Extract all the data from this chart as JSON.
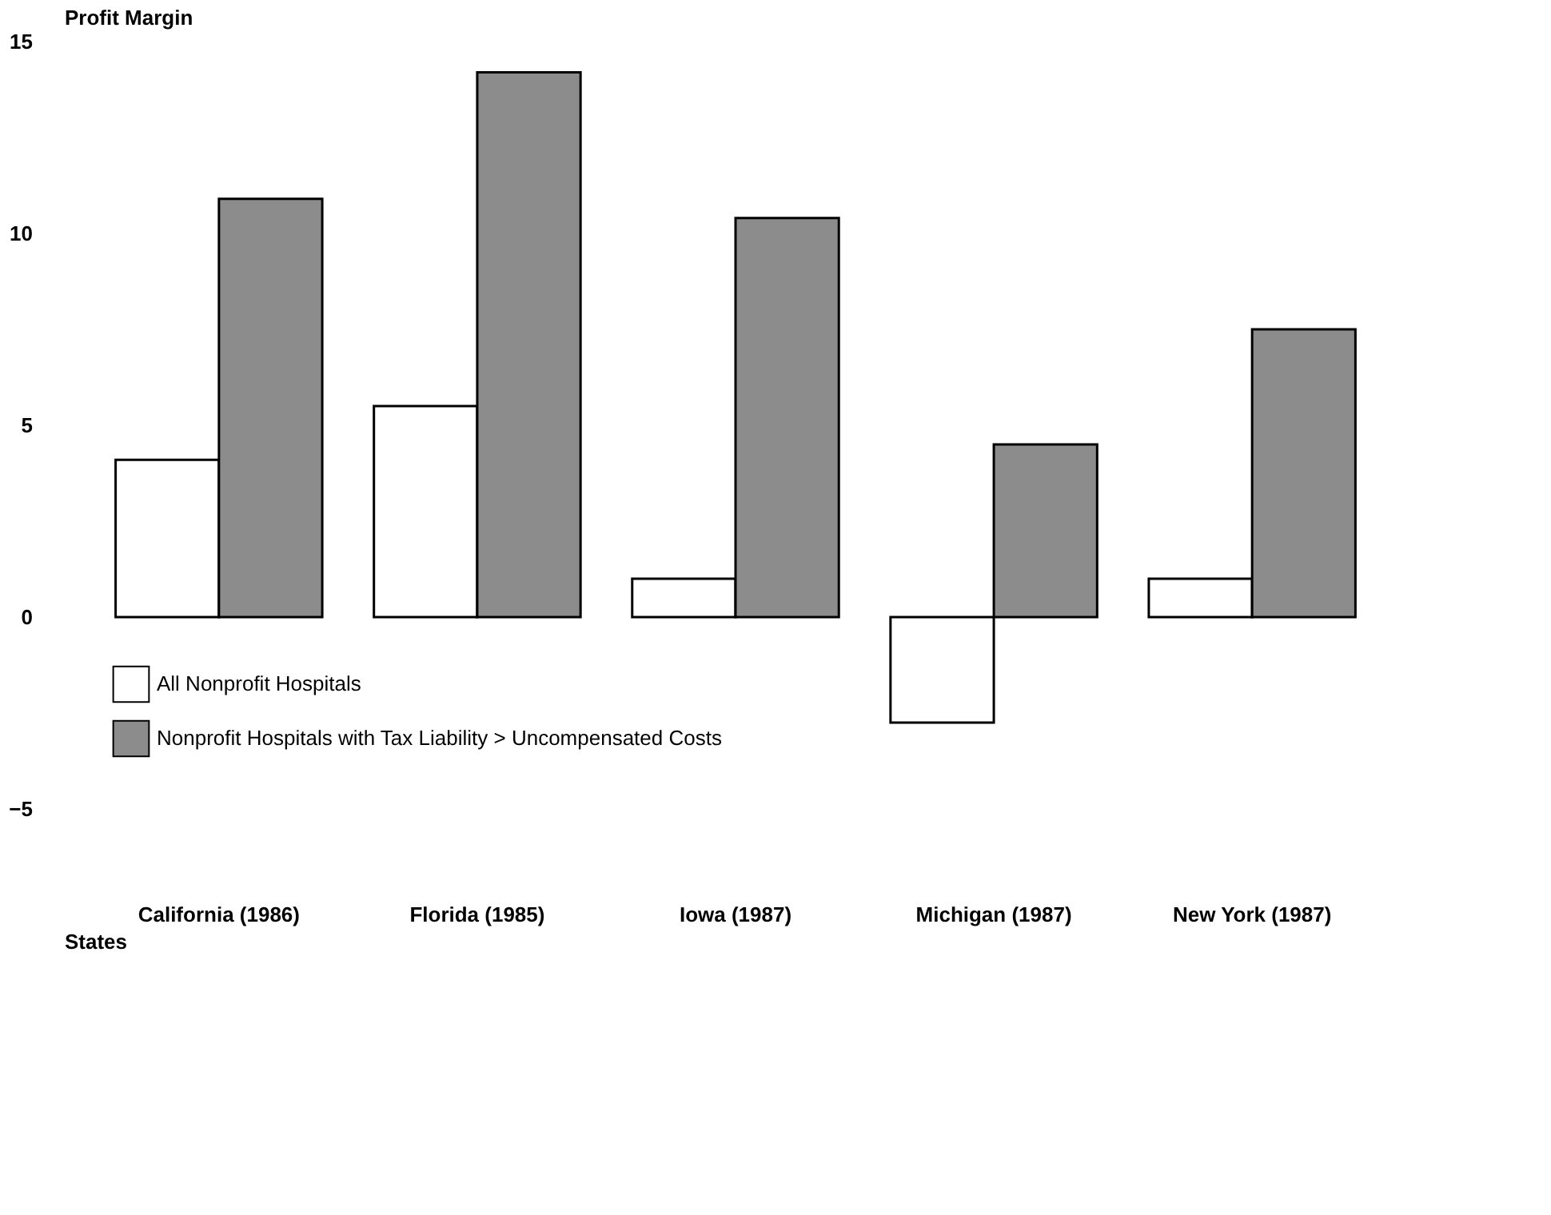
{
  "chart_data": {
    "type": "bar",
    "ylabel": "Profit Margin",
    "xlabel": "States",
    "categories": [
      "California (1986)",
      "Florida (1985)",
      "Iowa (1987)",
      "Michigan (1987)",
      "New York (1987)"
    ],
    "series": [
      {
        "name": "All Nonprofit Hospitals",
        "color": "#ffffff",
        "values": [
          4.1,
          5.5,
          1.0,
          -2.75,
          1.0
        ]
      },
      {
        "name": "Nonprofit Hospitals with Tax Liability > Uncompensated Costs",
        "color": "#8c8c8c",
        "values": [
          10.9,
          14.2,
          10.4,
          4.5,
          7.5
        ]
      }
    ],
    "ylim": [
      -5,
      15
    ],
    "yticks": [
      -5,
      0,
      5,
      10,
      15
    ],
    "grid": false,
    "legend": "bottom left"
  }
}
